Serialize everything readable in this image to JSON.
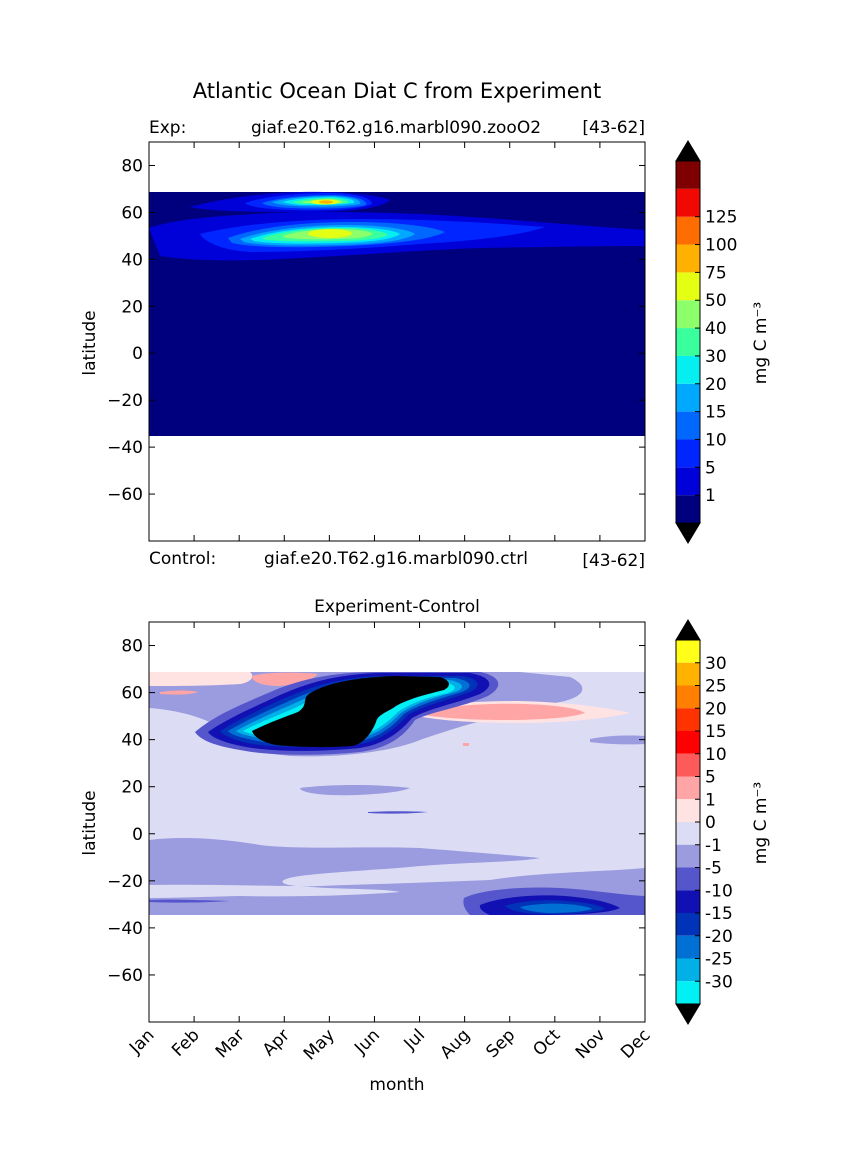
{
  "figure_title": "Atlantic Ocean Diat C from Experiment",
  "top_header": {
    "exp_label": "Exp:",
    "exp_case": "giaf.e20.T62.g16.marbl090.zooO2",
    "exp_years": "[43-62]"
  },
  "mid_header": {
    "ctrl_label": "Control:",
    "ctrl_case": "giaf.e20.T62.g16.marbl090.ctrl",
    "ctrl_years": "[43-62]"
  },
  "chart_data": [
    {
      "type": "heatmap",
      "title": "",
      "xlabel": "",
      "ylabel": "latitude",
      "ylim": [
        -80,
        90
      ],
      "xlim": [
        0,
        11
      ],
      "yticks": [
        80,
        60,
        40,
        20,
        0,
        -20,
        -40,
        -60
      ],
      "ytick_labels": [
        "80",
        "60",
        "40",
        "20",
        "0",
        "−20",
        "−40",
        "−60"
      ],
      "x_categories": [
        "Jan",
        "Feb",
        "Mar",
        "Apr",
        "May",
        "Jun",
        "Jul",
        "Aug",
        "Sep",
        "Oct",
        "Nov",
        "Dec"
      ],
      "data_extent_lat": [
        -34,
        69
      ],
      "colorbar": {
        "label": "mg C m⁻³",
        "levels": [
          "1",
          "5",
          "10",
          "15",
          "20",
          "30",
          "40",
          "50",
          "75",
          "100",
          "125"
        ],
        "colors": [
          "#00007f",
          "#0000d8",
          "#0025ff",
          "#0068ff",
          "#00a8ff",
          "#05eef0",
          "#39ff9d",
          "#8cff6a",
          "#e4ff13",
          "#ffb000",
          "#ff6d00",
          "#f10800",
          "#7f0000"
        ],
        "extend": "both",
        "extend_colors": {
          "low": "#000000",
          "high": "#000000"
        }
      },
      "features": [
        {
          "name": "subpolar bloom core",
          "month": 4.0,
          "lat": 51,
          "peak_level": "50"
        },
        {
          "name": "northern bloom",
          "month": 4.0,
          "lat": 64.5,
          "peak_level": "75"
        }
      ]
    },
    {
      "type": "heatmap",
      "title": "Experiment-Control",
      "xlabel": "month",
      "ylabel": "latitude",
      "ylim": [
        -80,
        90
      ],
      "xlim": [
        0,
        11
      ],
      "yticks": [
        80,
        60,
        40,
        20,
        0,
        -20,
        -40,
        -60
      ],
      "ytick_labels": [
        "80",
        "60",
        "40",
        "20",
        "0",
        "−20",
        "−40",
        "−60"
      ],
      "x_categories": [
        "Jan",
        "Feb",
        "Mar",
        "Apr",
        "May",
        "Jun",
        "Jul",
        "Aug",
        "Sep",
        "Oct",
        "Nov",
        "Dec"
      ],
      "data_extent_lat": [
        -34,
        69
      ],
      "colorbar": {
        "label": "mg C m⁻³",
        "levels": [
          "30",
          "25",
          "20",
          "15",
          "10",
          "5",
          "1",
          "0",
          "-1",
          "-5",
          "-10",
          "-15",
          "-20",
          "-25",
          "-30"
        ],
        "colors": [
          "#ffff1a",
          "#ffb300",
          "#ff8000",
          "#ff3300",
          "#ff0000",
          "#ff5a5a",
          "#ffa5a5",
          "#ffe3e3",
          "#dcdcf5",
          "#9b9bdf",
          "#5656cc",
          "#1111b3",
          "#0033b8",
          "#0070d4",
          "#00b0e6",
          "#00f0f5"
        ],
        "extend": "both",
        "extend_colors": {
          "low": "#000000",
          "high": "#000000"
        }
      },
      "features": [
        {
          "name": "strong negative anomaly",
          "month_range": [
            3.0,
            6.8
          ],
          "lat_range": [
            37,
            67
          ],
          "level": "< -30"
        },
        {
          "name": "positive anomaly",
          "month": 8.8,
          "lat": 55,
          "level": "5"
        },
        {
          "name": "southern negative anomaly",
          "month": 9.2,
          "lat": -30,
          "level": "-20"
        }
      ]
    }
  ]
}
